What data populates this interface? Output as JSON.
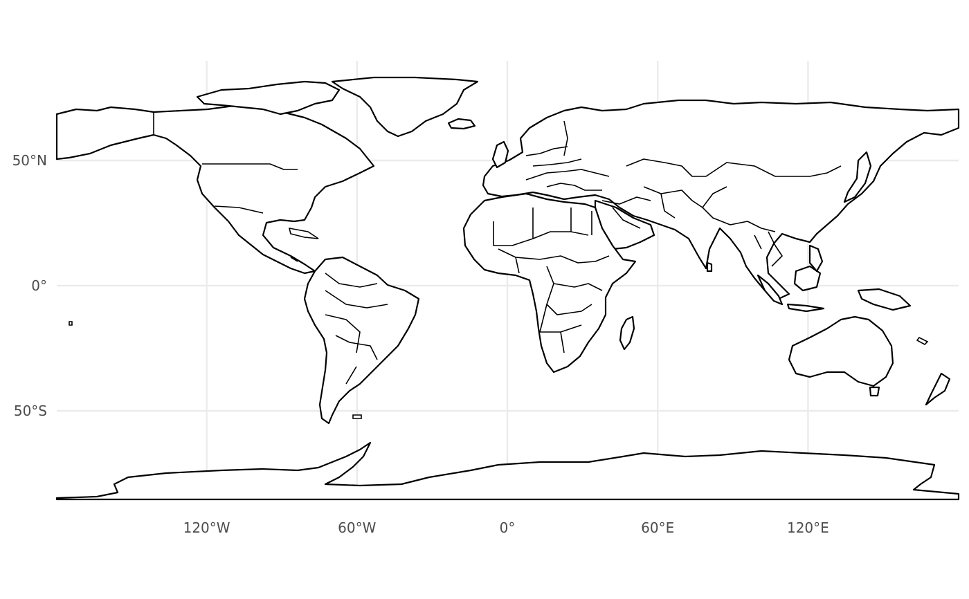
{
  "chart_data": {
    "type": "map",
    "projection": "equirectangular",
    "grid": true,
    "background": "#ffffff",
    "colors": {
      "land_fill": "#ffffff",
      "outline": "#000000",
      "grid": "#ebebeb",
      "tick_text": "#4d4d4d"
    },
    "xlim": [
      -180,
      180
    ],
    "ylim": [
      -90,
      90
    ],
    "x_ticks": [
      {
        "value": -120,
        "label": "120°W"
      },
      {
        "value": -60,
        "label": "60°W"
      },
      {
        "value": 0,
        "label": "0°"
      },
      {
        "value": 60,
        "label": "60°E"
      },
      {
        "value": 120,
        "label": "120°E"
      }
    ],
    "y_ticks": [
      {
        "value": 50,
        "label": "50°N"
      },
      {
        "value": 0,
        "label": "0°"
      },
      {
        "value": -50,
        "label": "50°S"
      }
    ]
  }
}
